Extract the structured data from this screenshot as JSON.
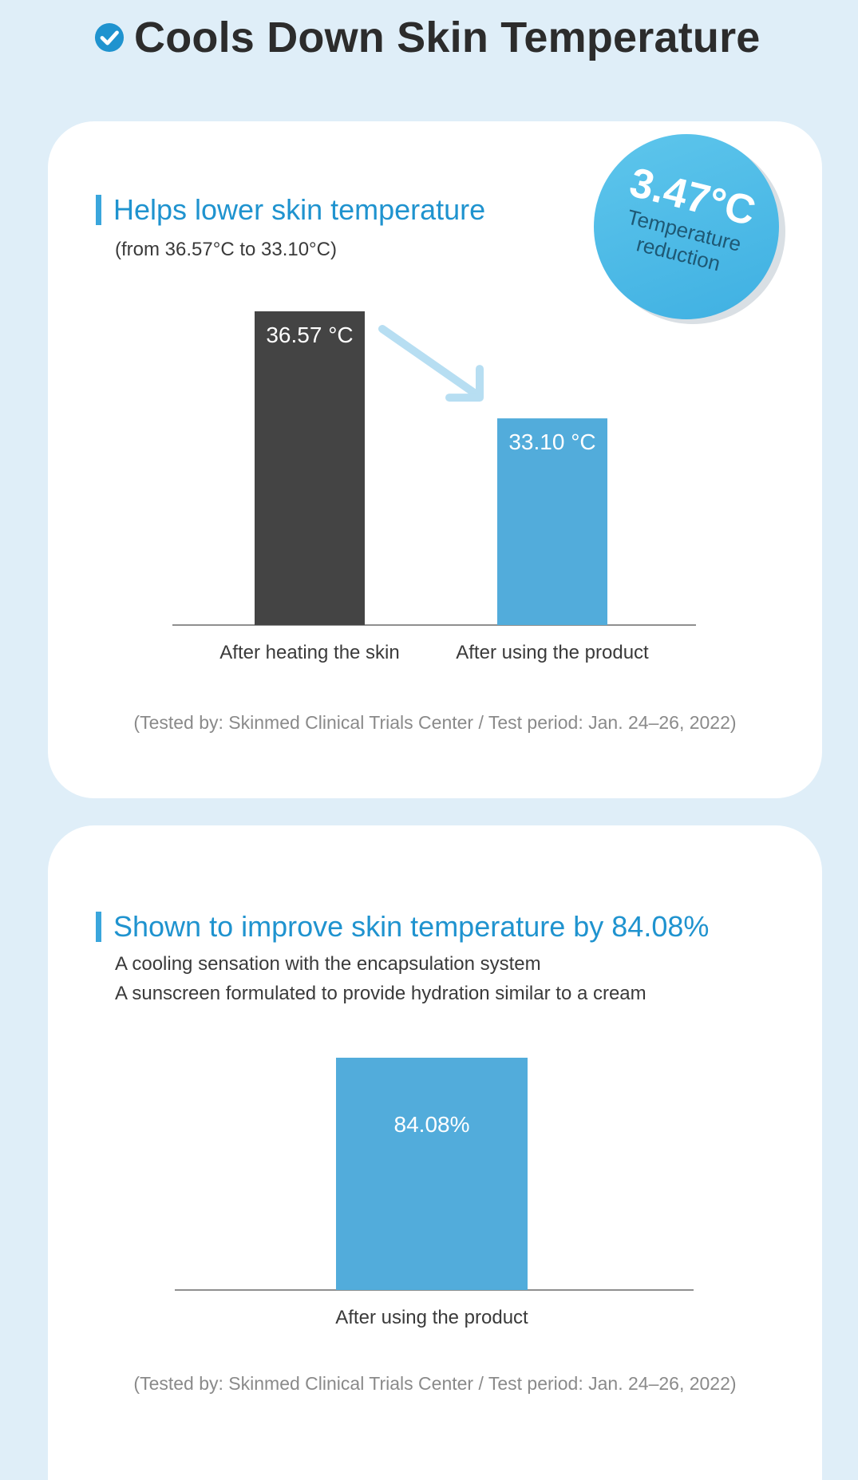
{
  "page": {
    "title": "Cools Down Skin Temperature",
    "icon": "check-circle-icon",
    "accent_color": "#1f93cf",
    "background_color": "#dfeef8"
  },
  "section1": {
    "heading": "Helps lower skin temperature",
    "subheading": "(from 36.57°C to 33.10°C)",
    "badge_value": "3.47°C",
    "badge_label_line1": "Temperature",
    "badge_label_line2": "reduction",
    "footnote": "(Tested by: Skinmed Clinical Trials Center / Test period: Jan. 24–26, 2022)"
  },
  "section2": {
    "heading": "Shown to improve skin temperature by 84.08%",
    "line1": "A cooling sensation with the encapsulation system",
    "line2": "A sunscreen formulated to provide hydration similar to a cream",
    "footnote": "(Tested by: Skinmed Clinical Trials Center / Test period: Jan. 24–26, 2022)"
  },
  "chart_data": [
    {
      "type": "bar",
      "categories": [
        "After heating the skin",
        "After using the product"
      ],
      "values": [
        36.57,
        33.1
      ],
      "value_labels": [
        "36.57 °C",
        "33.10 °C"
      ],
      "colors": [
        "#444444",
        "#52acdb"
      ],
      "ylim": [
        26.4,
        36.57
      ],
      "grid": false,
      "annotation": "arrow from first bar to second bar"
    },
    {
      "type": "bar",
      "categories": [
        "After using the product"
      ],
      "values": [
        84.08
      ],
      "value_labels": [
        "84.08%"
      ],
      "colors": [
        "#52acdb"
      ],
      "ylim": [
        0,
        84.08
      ],
      "grid": false
    }
  ]
}
